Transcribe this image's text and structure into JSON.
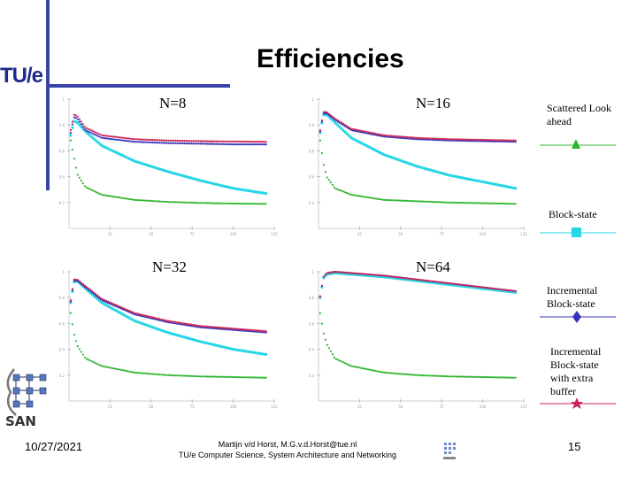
{
  "slide": {
    "logo_text": "TU/e",
    "title": "Efficiencies",
    "date": "10/27/2021",
    "footer_line1": "Martijn v/d Horst, M.G.v.d.Horst@tue.nl",
    "footer_line2": "TU/e Computer Science, System Architecture and Networking",
    "page_number": "15",
    "san_logo_text": "SAN"
  },
  "panel_labels": [
    "N=8",
    "N=16",
    "N=32",
    "N=64"
  ],
  "legend": [
    {
      "label": "Scattered Look ahead",
      "color": "#2db52d",
      "marker": "triangle"
    },
    {
      "label": "Block-state",
      "color": "#27d6e6",
      "marker": "square"
    },
    {
      "label": "Incremental Block-state",
      "color": "#3333bb",
      "marker": "diamond"
    },
    {
      "label": "Incremental Block-state with extra buffer",
      "color": "#cc2255",
      "marker": "star"
    }
  ],
  "chart_data": [
    {
      "type": "scatter",
      "title": "N=8",
      "x": [
        1,
        3,
        5,
        10,
        20,
        40,
        60,
        80,
        100,
        120
      ],
      "series": [
        {
          "name": "Scattered Look ahead",
          "color": "#2db52d",
          "values": [
            0.68,
            0.55,
            0.42,
            0.32,
            0.26,
            0.22,
            0.205,
            0.197,
            0.192,
            0.19
          ]
        },
        {
          "name": "Block-state",
          "color": "#27d6e6",
          "values": [
            0.72,
            0.83,
            0.82,
            0.75,
            0.64,
            0.52,
            0.44,
            0.37,
            0.31,
            0.27
          ]
        },
        {
          "name": "Incremental Block-state",
          "color": "#3333bb",
          "values": [
            0.74,
            0.86,
            0.85,
            0.76,
            0.7,
            0.67,
            0.66,
            0.655,
            0.65,
            0.65
          ]
        },
        {
          "name": "Incremental Block-state with extra buffer",
          "color": "#cc2255",
          "values": [
            0.76,
            0.88,
            0.87,
            0.78,
            0.72,
            0.69,
            0.68,
            0.675,
            0.672,
            0.67
          ]
        }
      ],
      "xlim": [
        0,
        125
      ],
      "ylim": [
        0,
        1
      ],
      "xticks": [
        25,
        50,
        75,
        100,
        125
      ],
      "yticks": [
        0.2,
        0.4,
        0.6,
        0.8,
        1
      ]
    },
    {
      "type": "scatter",
      "title": "N=16",
      "x": [
        1,
        3,
        5,
        10,
        20,
        40,
        60,
        80,
        100,
        120
      ],
      "series": [
        {
          "name": "Scattered Look ahead",
          "color": "#2db52d",
          "values": [
            0.68,
            0.5,
            0.4,
            0.31,
            0.26,
            0.22,
            0.21,
            0.2,
            0.195,
            0.19
          ]
        },
        {
          "name": "Block-state",
          "color": "#27d6e6",
          "values": [
            0.74,
            0.88,
            0.88,
            0.82,
            0.7,
            0.57,
            0.48,
            0.41,
            0.36,
            0.31
          ]
        },
        {
          "name": "Incremental Block-state",
          "color": "#3333bb",
          "values": [
            0.75,
            0.89,
            0.89,
            0.84,
            0.76,
            0.71,
            0.69,
            0.68,
            0.675,
            0.67
          ]
        },
        {
          "name": "Incremental Block-state with extra buffer",
          "color": "#cc2255",
          "values": [
            0.76,
            0.9,
            0.9,
            0.85,
            0.77,
            0.72,
            0.7,
            0.69,
            0.685,
            0.68
          ]
        }
      ],
      "xlim": [
        0,
        125
      ],
      "ylim": [
        0,
        1
      ],
      "xticks": [
        25,
        50,
        75,
        100,
        125
      ],
      "yticks": [
        0.2,
        0.4,
        0.6,
        0.8,
        1
      ]
    },
    {
      "type": "scatter",
      "title": "N=32",
      "x": [
        1,
        3,
        5,
        10,
        20,
        40,
        60,
        80,
        100,
        120
      ],
      "series": [
        {
          "name": "Scattered Look ahead",
          "color": "#2db52d",
          "values": [
            0.68,
            0.52,
            0.43,
            0.33,
            0.27,
            0.22,
            0.2,
            0.19,
            0.185,
            0.18
          ]
        },
        {
          "name": "Block-state",
          "color": "#27d6e6",
          "values": [
            0.76,
            0.92,
            0.93,
            0.87,
            0.76,
            0.62,
            0.53,
            0.46,
            0.4,
            0.36
          ]
        },
        {
          "name": "Incremental Block-state",
          "color": "#3333bb",
          "values": [
            0.77,
            0.93,
            0.93,
            0.88,
            0.78,
            0.67,
            0.61,
            0.57,
            0.55,
            0.53
          ]
        },
        {
          "name": "Incremental Block-state with extra buffer",
          "color": "#cc2255",
          "values": [
            0.78,
            0.94,
            0.94,
            0.89,
            0.79,
            0.68,
            0.62,
            0.58,
            0.56,
            0.54
          ]
        }
      ],
      "xlim": [
        0,
        125
      ],
      "ylim": [
        0,
        1
      ],
      "xticks": [
        25,
        50,
        75,
        100,
        125
      ],
      "yticks": [
        0.2,
        0.4,
        0.6,
        0.8,
        1
      ]
    },
    {
      "type": "scatter",
      "title": "N=64",
      "x": [
        1,
        3,
        5,
        10,
        20,
        40,
        60,
        80,
        100,
        120
      ],
      "series": [
        {
          "name": "Scattered Look ahead",
          "color": "#2db52d",
          "values": [
            0.68,
            0.53,
            0.44,
            0.33,
            0.27,
            0.22,
            0.2,
            0.19,
            0.185,
            0.18
          ]
        },
        {
          "name": "Block-state",
          "color": "#27d6e6",
          "values": [
            0.8,
            0.95,
            0.98,
            0.99,
            0.98,
            0.96,
            0.93,
            0.9,
            0.87,
            0.84
          ]
        },
        {
          "name": "Incremental Block-state",
          "color": "#3333bb",
          "values": [
            0.81,
            0.96,
            0.99,
            1.0,
            0.99,
            0.97,
            0.94,
            0.91,
            0.88,
            0.85
          ]
        },
        {
          "name": "Incremental Block-state with extra buffer",
          "color": "#cc2255",
          "values": [
            0.81,
            0.96,
            0.99,
            1.0,
            0.99,
            0.97,
            0.94,
            0.91,
            0.88,
            0.85
          ]
        }
      ],
      "xlim": [
        0,
        125
      ],
      "ylim": [
        0,
        1
      ],
      "xticks": [
        25,
        50,
        75,
        100,
        125
      ],
      "yticks": [
        0.2,
        0.4,
        0.6,
        0.8,
        1
      ]
    }
  ]
}
